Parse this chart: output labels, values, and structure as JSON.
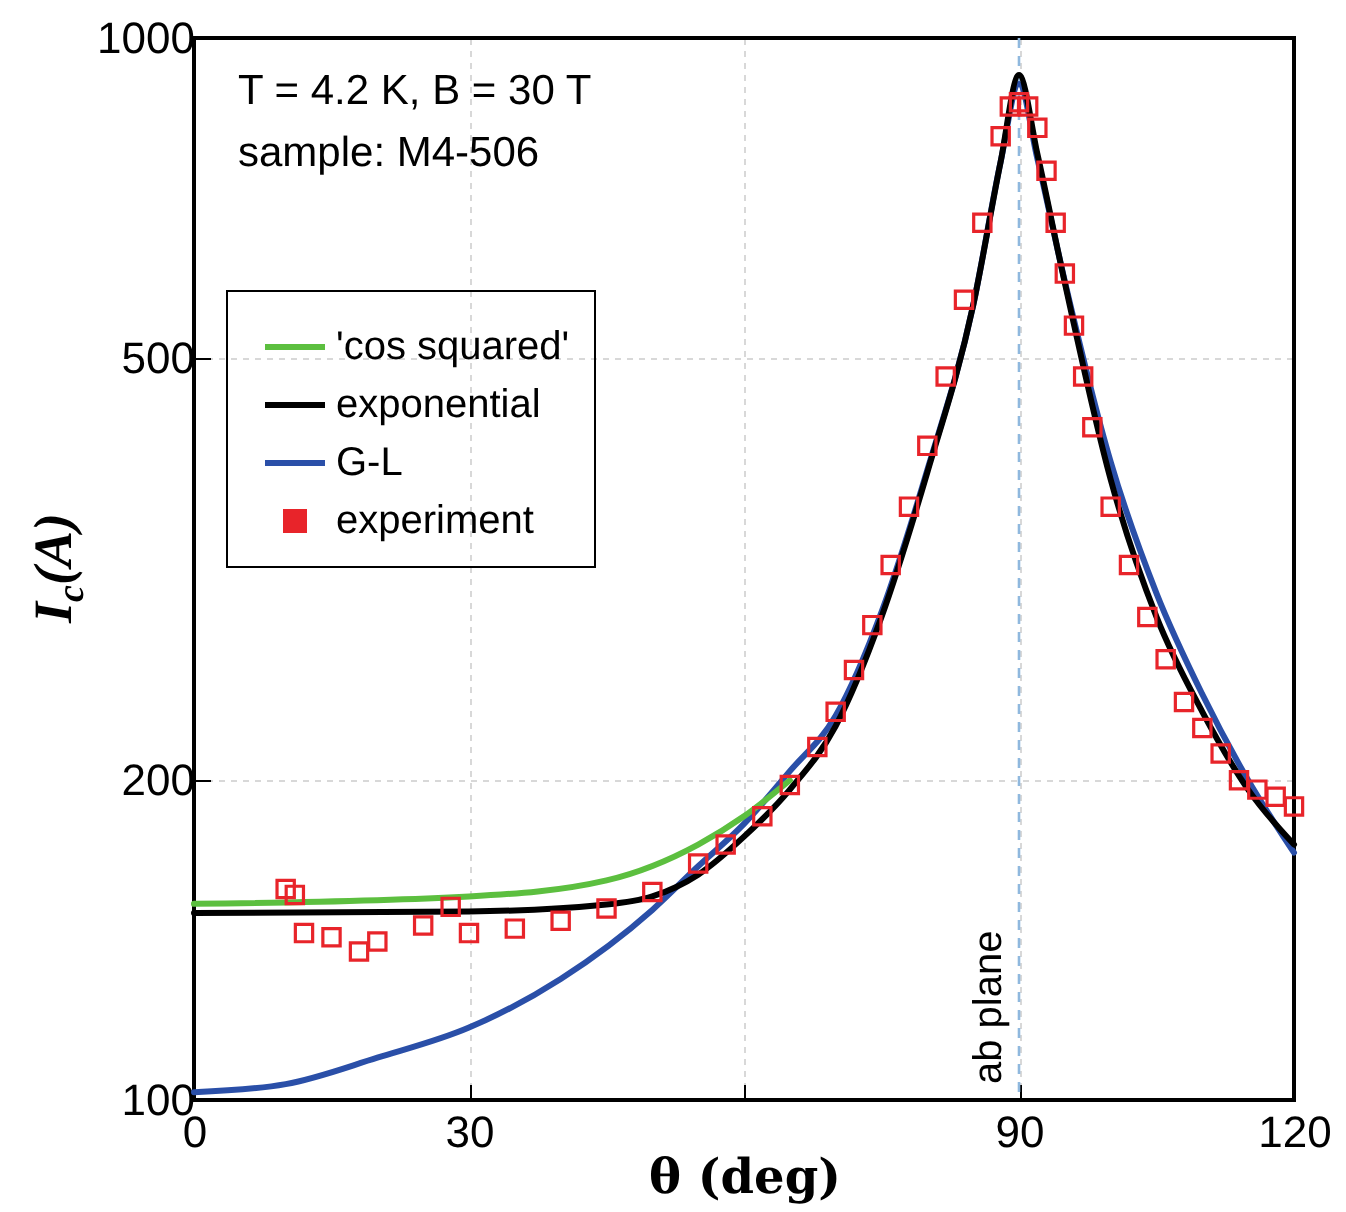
{
  "chart_data": {
    "type": "line",
    "xlabel": "θ (deg)",
    "ylabel": "I$_{c}$(A)",
    "log": "y",
    "xlim": [
      0,
      120
    ],
    "xticks": [
      0,
      30,
      {
        "value": 60,
        "label": null
      },
      90,
      120
    ],
    "ylim": [
      100,
      1000
    ],
    "yticks": [
      100,
      200,
      500,
      1000
    ],
    "grid": true,
    "legend": "top left",
    "annotations": [
      "T = 4.2 K,  B = 30 T",
      "sample: M4-506"
    ],
    "ref_lines": [
      {
        "axis": "x",
        "value": 90,
        "label": "ab plane",
        "color": "#8fb8de",
        "line_style": "dashed"
      }
    ],
    "series": [
      {
        "name": "'cos squared'",
        "color": "#5cbf3f",
        "x": [
          0,
          30,
          45,
          55,
          60,
          65
        ],
        "values": [
          153,
          155.5,
          161,
          174,
          185,
          200
        ]
      },
      {
        "name": "exponential",
        "color": "#000000",
        "x": [
          0,
          30,
          45,
          50,
          55,
          60,
          65,
          70,
          75,
          80,
          85,
          88,
          90,
          92,
          95,
          100,
          105,
          110,
          115,
          120
        ],
        "values": [
          150,
          150.5,
          152.8,
          155.5,
          163,
          177,
          196,
          225,
          285,
          390,
          560,
          765,
          923,
          778,
          588,
          384,
          285,
          232,
          196,
          174
        ]
      },
      {
        "name": "G-L",
        "color": "#2a4fa8",
        "x": [
          0,
          10,
          20,
          30,
          40,
          50,
          55,
          60,
          65,
          70,
          75,
          80,
          85,
          88,
          90,
          92,
          95,
          100,
          105,
          110,
          115,
          120
        ],
        "values": [
          101.7,
          103.5,
          109.6,
          117,
          130,
          151,
          166,
          182,
          204,
          230,
          288,
          392,
          560,
          765,
          905,
          770,
          590,
          399,
          300,
          241,
          200,
          171
        ]
      },
      {
        "name": " experiment",
        "type": "scatter",
        "marker": "square",
        "color": "#e8242a",
        "x": [
          10,
          11,
          12,
          15,
          18,
          20,
          25,
          28,
          30,
          35,
          40,
          45,
          50,
          55,
          58,
          62,
          65,
          68,
          70,
          72,
          74,
          76,
          78,
          80,
          82,
          84,
          86,
          88,
          89,
          90,
          91,
          92,
          93,
          94,
          95,
          96,
          97,
          98,
          100,
          102,
          104,
          106,
          108,
          110,
          112,
          114,
          116,
          118,
          120
        ],
        "values": [
          158,
          156,
          143.6,
          142.3,
          138,
          141,
          146,
          152,
          143.6,
          145,
          147.5,
          151.5,
          157,
          167,
          174,
          185,
          198,
          215,
          232,
          254,
          280,
          319,
          362,
          413,
          480,
          567,
          670,
          808,
          862,
          870,
          862,
          823,
          750,
          670,
          600,
          536,
          480,
          430,
          362,
          319,
          285,
          260,
          237,
          224,
          212,
          200,
          196,
          193,
          189
        ]
      }
    ]
  }
}
